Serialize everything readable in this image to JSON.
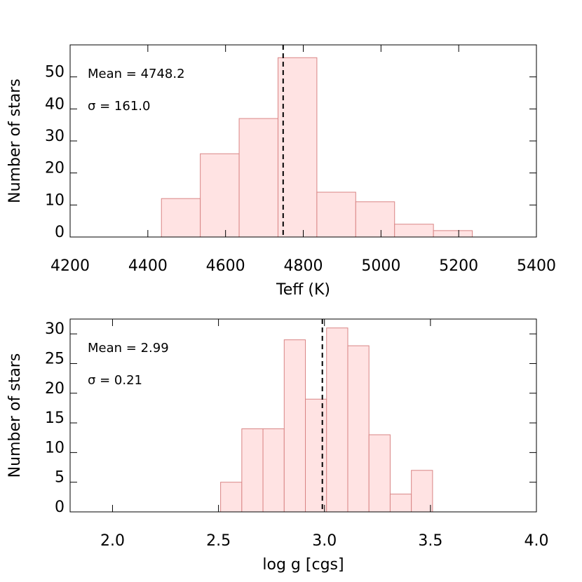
{
  "chart_data": [
    {
      "type": "histogram",
      "x_label": "Teff (K)",
      "y_label": "Number of stars",
      "bins": [
        4435,
        4535,
        4635,
        4735,
        4835,
        4935,
        5035,
        5135,
        5235
      ],
      "values": [
        12,
        26,
        37,
        56,
        14,
        11,
        4,
        2
      ],
      "color": "#ffe3e3",
      "edge_color": "#d98585",
      "xlim": [
        4200,
        5400
      ],
      "xticks": [
        4200,
        4400,
        4600,
        4800,
        5000,
        5200,
        5400
      ],
      "ylim": [
        0,
        60
      ],
      "yticks": [
        0,
        10,
        20,
        30,
        40,
        50
      ],
      "mean_line": 4748.2,
      "annotations": [
        "Mean = 4748.2",
        "σ = 161.0"
      ]
    },
    {
      "type": "histogram",
      "x_label": "log g [cgs]",
      "y_label": "Number of stars",
      "bins": [
        2.51,
        2.61,
        2.71,
        2.81,
        2.91,
        3.01,
        3.11,
        3.21,
        3.31,
        3.41,
        3.51
      ],
      "values": [
        5,
        14,
        14,
        29,
        19,
        31,
        28,
        13,
        3,
        7
      ],
      "color": "#ffe3e3",
      "edge_color": "#d98585",
      "xlim": [
        1.8,
        4.0
      ],
      "xticks": [
        {
          "value": 2.0,
          "label": "2.0"
        },
        2.5,
        {
          "value": 3.0,
          "label": "3.0"
        },
        3.5,
        {
          "value": 4.0,
          "label": "4.0"
        }
      ],
      "ylim": [
        0,
        32.5
      ],
      "yticks": [
        0,
        5,
        10,
        15,
        20,
        25,
        30
      ],
      "mean_line": 2.99,
      "annotations": [
        "Mean = 2.99",
        "σ = 0.21"
      ]
    }
  ]
}
